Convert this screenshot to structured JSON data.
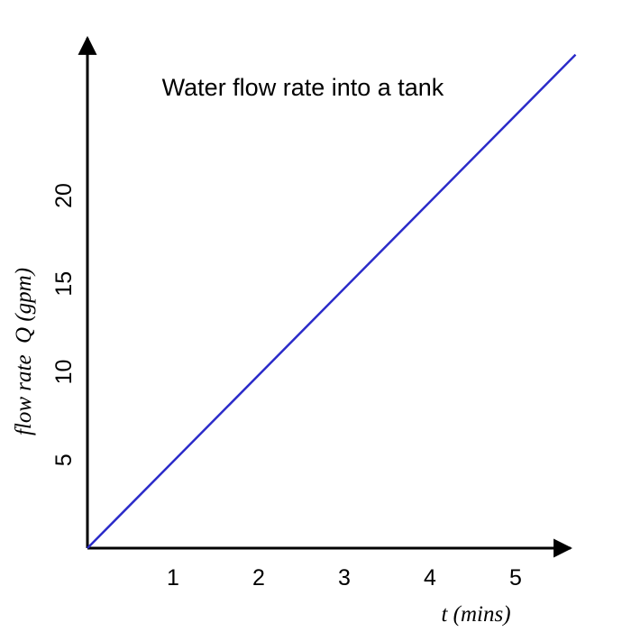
{
  "chart_data": {
    "type": "line",
    "title": "Water flow rate into a tank",
    "xlabel": "t (mins)",
    "ylabel": "flow rate  Q (gpm)",
    "x_ticks": [
      1,
      2,
      3,
      4,
      5
    ],
    "y_ticks": [
      5,
      10,
      15,
      20
    ],
    "xlim": [
      0,
      5.72
    ],
    "ylim": [
      0,
      28.5
    ],
    "grid": false,
    "series": [
      {
        "color": "#2b2bc9",
        "x": [
          0,
          5.7
        ],
        "y": [
          0,
          28.0
        ]
      }
    ]
  }
}
